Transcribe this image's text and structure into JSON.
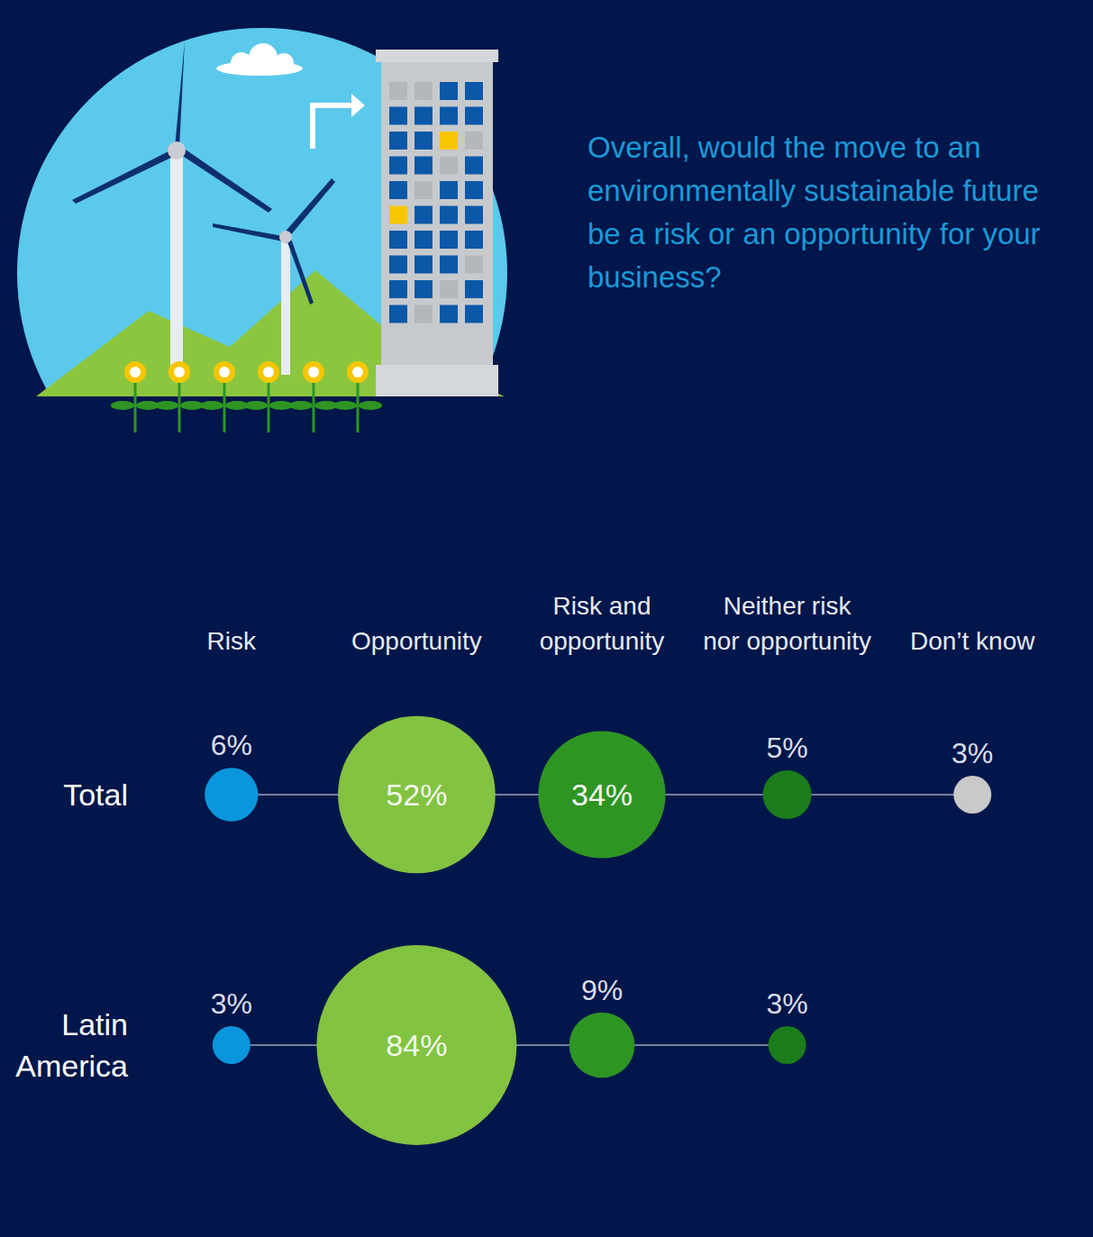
{
  "chart_data": {
    "type": "bubble",
    "title": "Overall, would the move to an environmentally sustainable future be a risk or an opportunity for your business?",
    "categories": [
      "Risk",
      "Opportunity",
      "Risk and opportunity",
      "Neither risk nor opportunity",
      "Don’t know"
    ],
    "colors": [
      "#0a96dc",
      "#82c341",
      "#2e9523",
      "#1b7d1b",
      "#c9c9c9"
    ],
    "series": [
      {
        "name": "Total",
        "values": [
          6,
          52,
          34,
          5,
          3
        ],
        "value_labels": [
          "6%",
          "52%",
          "34%",
          "5%",
          "3%"
        ]
      },
      {
        "name": "Latin America",
        "values": [
          3,
          84,
          9,
          3,
          null
        ],
        "value_labels": [
          "3%",
          "84%",
          "9%",
          "3%",
          null
        ]
      }
    ],
    "data_labels": true
  }
}
